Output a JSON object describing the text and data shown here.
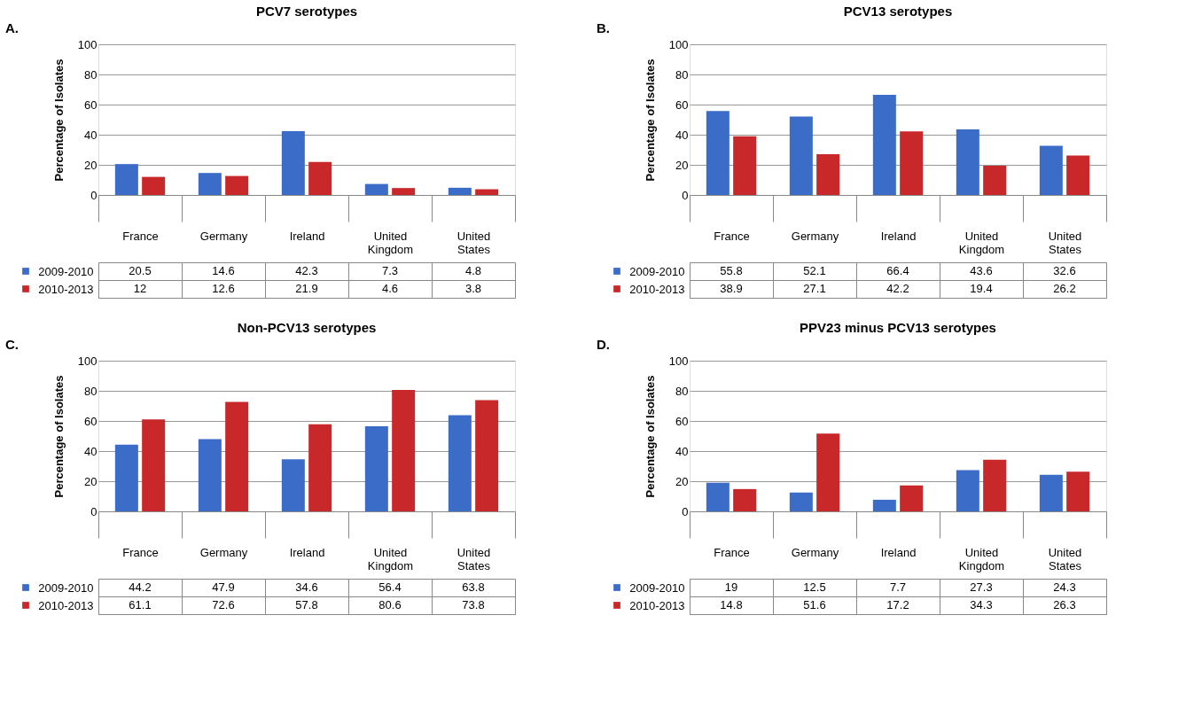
{
  "chart_data": [
    {
      "type": "bar",
      "title": "PCV7 serotypes",
      "ylabel": "Percentage of Isolates",
      "annotations": [
        "A."
      ],
      "legend": "bottom left",
      "categories": [
        "France",
        "Germany",
        "Ireland",
        "United Kingdom",
        "United States"
      ],
      "ylim": [
        0,
        100
      ],
      "yticks": [
        0,
        20,
        40,
        60,
        80,
        100
      ],
      "grid": "y",
      "data_labels": true,
      "series": [
        {
          "name": "2009-2010",
          "color": "#3a6cc8",
          "values": [
            20.5,
            14.6,
            42.3,
            7.3,
            4.8
          ]
        },
        {
          "name": "2010-2013",
          "color": "#c8282a",
          "values": [
            12,
            12.6,
            21.9,
            4.6,
            3.8
          ]
        }
      ]
    },
    {
      "type": "bar",
      "title": "PCV13 serotypes",
      "ylabel": "Percentage of Isolates",
      "annotations": [
        "B."
      ],
      "legend": "bottom left",
      "categories": [
        "France",
        "Germany",
        "Ireland",
        "United Kingdom",
        "United States"
      ],
      "ylim": [
        0,
        100
      ],
      "yticks": [
        0,
        20,
        40,
        60,
        80,
        100
      ],
      "grid": "y",
      "data_labels": true,
      "series": [
        {
          "name": "2009-2010",
          "color": "#3a6cc8",
          "values": [
            55.8,
            52.1,
            66.4,
            43.6,
            32.6
          ]
        },
        {
          "name": "2010-2013",
          "color": "#c8282a",
          "values": [
            38.9,
            27.1,
            42.2,
            19.4,
            26.2
          ]
        }
      ]
    },
    {
      "type": "bar",
      "title": "Non-PCV13 serotypes",
      "ylabel": "Percentage of Isolates",
      "annotations": [
        "C."
      ],
      "legend": "bottom left",
      "categories": [
        "France",
        "Germany",
        "Ireland",
        "United Kingdom",
        "United States"
      ],
      "ylim": [
        0,
        100
      ],
      "yticks": [
        0,
        20,
        40,
        60,
        80,
        100
      ],
      "grid": "y",
      "data_labels": true,
      "series": [
        {
          "name": "2009-2010",
          "color": "#3a6cc8",
          "values": [
            44.2,
            47.9,
            34.6,
            56.4,
            63.8
          ]
        },
        {
          "name": "2010-2013",
          "color": "#c8282a",
          "values": [
            61.1,
            72.6,
            57.8,
            80.6,
            73.8
          ]
        }
      ]
    },
    {
      "type": "bar",
      "title": "PPV23 minus PCV13 serotypes",
      "ylabel": "Percentage of Isolates",
      "annotations": [
        "D."
      ],
      "legend": "bottom left",
      "categories": [
        "France",
        "Germany",
        "Ireland",
        "United Kingdom",
        "United States"
      ],
      "ylim": [
        0,
        100
      ],
      "yticks": [
        0,
        20,
        40,
        60,
        80,
        100
      ],
      "grid": "y",
      "data_labels": true,
      "series": [
        {
          "name": "2009-2010",
          "color": "#3a6cc8",
          "values": [
            19,
            12.5,
            7.7,
            27.3,
            24.3
          ]
        },
        {
          "name": "2010-2013",
          "color": "#c8282a",
          "values": [
            14.8,
            51.6,
            17.2,
            34.3,
            26.3
          ]
        }
      ]
    }
  ]
}
